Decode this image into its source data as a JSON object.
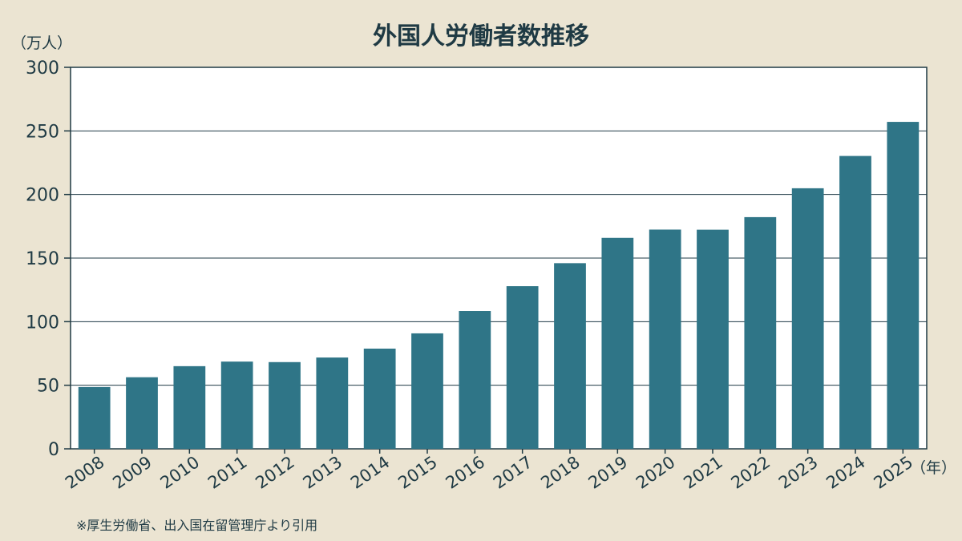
{
  "chart_data": {
    "type": "bar",
    "title": "外国人労働者数推移",
    "yunit": "（万人）",
    "xunit": "（年）",
    "note": "※厚生労働省、出入国在留管理庁より引用",
    "categories": [
      "2008",
      "2009",
      "2010",
      "2011",
      "2012",
      "2013",
      "2014",
      "2015",
      "2016",
      "2017",
      "2018",
      "2019",
      "2020",
      "2021",
      "2022",
      "2023",
      "2024",
      "2025"
    ],
    "values": [
      48.6,
      56.3,
      65.0,
      68.6,
      68.2,
      71.8,
      78.8,
      90.8,
      108.4,
      127.9,
      146.0,
      165.9,
      172.4,
      172.3,
      182.2,
      204.9,
      230.3,
      257.1
    ],
    "yticks": [
      "0",
      "50",
      "100",
      "150",
      "200",
      "250",
      "300"
    ],
    "ylim": [
      0,
      300
    ],
    "grid": true,
    "bar_color": "#2f7587",
    "plot_background": "#ffffff",
    "page_background": "#ebe4d2"
  }
}
